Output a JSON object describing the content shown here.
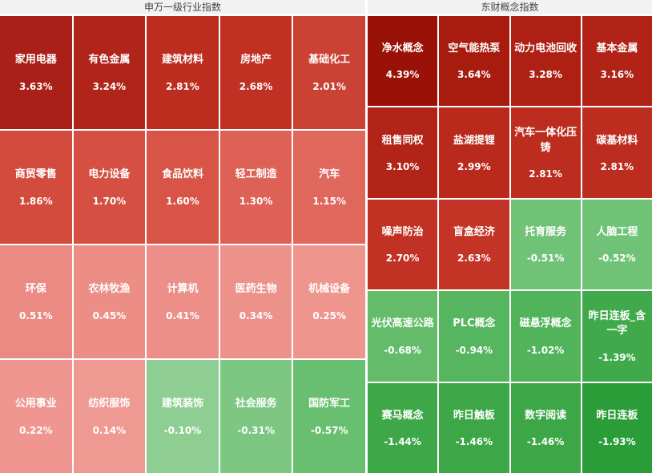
{
  "panels": [
    {
      "title": "申万一级行业指数",
      "columns": 5,
      "rows": [
        [
          {
            "name": "家用电器",
            "value": "3.63%",
            "color": "#aa2018"
          },
          {
            "name": "有色金属",
            "value": "3.24%",
            "color": "#b02419"
          },
          {
            "name": "建筑材料",
            "value": "2.81%",
            "color": "#bd2d1f"
          },
          {
            "name": "房地产",
            "value": "2.68%",
            "color": "#c03023"
          },
          {
            "name": "基础化工",
            "value": "2.01%",
            "color": "#cb4133"
          }
        ],
        [
          {
            "name": "商贸零售",
            "value": "1.86%",
            "color": "#d24b3d"
          },
          {
            "name": "电力设备",
            "value": "1.70%",
            "color": "#d55042"
          },
          {
            "name": "食品饮料",
            "value": "1.60%",
            "color": "#d75446"
          },
          {
            "name": "轻工制造",
            "value": "1.30%",
            "color": "#dd6155"
          },
          {
            "name": "汽车",
            "value": "1.15%",
            "color": "#e0675c"
          }
        ],
        [
          {
            "name": "环保",
            "value": "0.51%",
            "color": "#eb8a83"
          },
          {
            "name": "农林牧渔",
            "value": "0.45%",
            "color": "#ec8d86"
          },
          {
            "name": "计算机",
            "value": "0.41%",
            "color": "#ec8f88"
          },
          {
            "name": "医药生物",
            "value": "0.34%",
            "color": "#ed928b"
          },
          {
            "name": "机械设备",
            "value": "0.25%",
            "color": "#ee958e"
          }
        ],
        [
          {
            "name": "公用事业",
            "value": "0.22%",
            "color": "#ee968f"
          },
          {
            "name": "纺织服饰",
            "value": "0.14%",
            "color": "#ef9993"
          },
          {
            "name": "建筑装饰",
            "value": "-0.10%",
            "color": "#8fce92"
          },
          {
            "name": "社会服务",
            "value": "-0.31%",
            "color": "#7ec783"
          },
          {
            "name": "国防军工",
            "value": "-0.57%",
            "color": "#69bf70"
          }
        ]
      ]
    },
    {
      "title": "东财概念指数",
      "columns": 4,
      "rows": [
        [
          {
            "name": "净水概念",
            "value": "4.39%",
            "color": "#9a1207"
          },
          {
            "name": "空气能热泵",
            "value": "3.64%",
            "color": "#a81c10"
          },
          {
            "name": "动力电池回收",
            "value": "3.28%",
            "color": "#ae2014"
          },
          {
            "name": "基本金属",
            "value": "3.16%",
            "color": "#b12317"
          }
        ],
        [
          {
            "name": "租售同权",
            "value": "3.10%",
            "color": "#b32418"
          },
          {
            "name": "盐湖提锂",
            "value": "2.99%",
            "color": "#b9291c"
          },
          {
            "name": "汽车一体化压铸",
            "value": "2.81%",
            "color": "#bd2d1f"
          },
          {
            "name": "碳基材料",
            "value": "2.81%",
            "color": "#bd2d1f"
          }
        ],
        [
          {
            "name": "噪声防治",
            "value": "2.70%",
            "color": "#c13124"
          },
          {
            "name": "盲盒经济",
            "value": "2.63%",
            "color": "#c33427"
          },
          {
            "name": "托育服务",
            "value": "-0.51%",
            "color": "#70c277"
          },
          {
            "name": "人脑工程",
            "value": "-0.52%",
            "color": "#70c276"
          }
        ],
        [
          {
            "name": "光伏高速公路",
            "value": "-0.68%",
            "color": "#64bc6b"
          },
          {
            "name": "PLC概念",
            "value": "-0.94%",
            "color": "#56b55f"
          },
          {
            "name": "磁悬浮概念",
            "value": "-1.02%",
            "color": "#51b35a"
          },
          {
            "name": "昨日连板_含一字",
            "value": "-1.39%",
            "color": "#40a94b"
          }
        ],
        [
          {
            "name": "赛马概念",
            "value": "-1.44%",
            "color": "#3ea849"
          },
          {
            "name": "昨日触板",
            "value": "-1.46%",
            "color": "#3da748"
          },
          {
            "name": "数字阅读",
            "value": "-1.46%",
            "color": "#3da748"
          },
          {
            "name": "昨日连板",
            "value": "-1.93%",
            "color": "#2b9d38"
          }
        ]
      ]
    }
  ],
  "chart_data": [
    {
      "type": "heatmap",
      "title": "申万一级行业指数",
      "unit": "percent_change",
      "items": [
        {
          "name": "家用电器",
          "value": 3.63
        },
        {
          "name": "有色金属",
          "value": 3.24
        },
        {
          "name": "建筑材料",
          "value": 2.81
        },
        {
          "name": "房地产",
          "value": 2.68
        },
        {
          "name": "基础化工",
          "value": 2.01
        },
        {
          "name": "商贸零售",
          "value": 1.86
        },
        {
          "name": "电力设备",
          "value": 1.7
        },
        {
          "name": "食品饮料",
          "value": 1.6
        },
        {
          "name": "轻工制造",
          "value": 1.3
        },
        {
          "name": "汽车",
          "value": 1.15
        },
        {
          "name": "环保",
          "value": 0.51
        },
        {
          "name": "农林牧渔",
          "value": 0.45
        },
        {
          "name": "计算机",
          "value": 0.41
        },
        {
          "name": "医药生物",
          "value": 0.34
        },
        {
          "name": "机械设备",
          "value": 0.25
        },
        {
          "name": "公用事业",
          "value": 0.22
        },
        {
          "name": "纺织服饰",
          "value": 0.14
        },
        {
          "name": "建筑装饰",
          "value": -0.1
        },
        {
          "name": "社会服务",
          "value": -0.31
        },
        {
          "name": "国防军工",
          "value": -0.57
        }
      ],
      "color_legend": {
        "positive": "#aa2018",
        "near_zero_positive": "#ee958e",
        "negative": "#2b9d38",
        "near_zero_negative": "#8fce92"
      }
    },
    {
      "type": "heatmap",
      "title": "东财概念指数",
      "unit": "percent_change",
      "items": [
        {
          "name": "净水概念",
          "value": 4.39
        },
        {
          "name": "空气能热泵",
          "value": 3.64
        },
        {
          "name": "动力电池回收",
          "value": 3.28
        },
        {
          "name": "基本金属",
          "value": 3.16
        },
        {
          "name": "租售同权",
          "value": 3.1
        },
        {
          "name": "盐湖提锂",
          "value": 2.99
        },
        {
          "name": "汽车一体化压铸",
          "value": 2.81
        },
        {
          "name": "碳基材料",
          "value": 2.81
        },
        {
          "name": "噪声防治",
          "value": 2.7
        },
        {
          "name": "盲盒经济",
          "value": 2.63
        },
        {
          "name": "托育服务",
          "value": -0.51
        },
        {
          "name": "人脑工程",
          "value": -0.52
        },
        {
          "name": "光伏高速公路",
          "value": -0.68
        },
        {
          "name": "PLC概念",
          "value": -0.94
        },
        {
          "name": "磁悬浮概念",
          "value": -1.02
        },
        {
          "name": "昨日连板_含一字",
          "value": -1.39
        },
        {
          "name": "赛马概念",
          "value": -1.44
        },
        {
          "name": "昨日触板",
          "value": -1.46
        },
        {
          "name": "数字阅读",
          "value": -1.46
        },
        {
          "name": "昨日连板",
          "value": -1.93
        }
      ],
      "color_legend": {
        "positive": "#9a1207",
        "near_zero_positive": "#c33427",
        "negative": "#2b9d38",
        "near_zero_negative": "#70c277"
      }
    }
  ]
}
